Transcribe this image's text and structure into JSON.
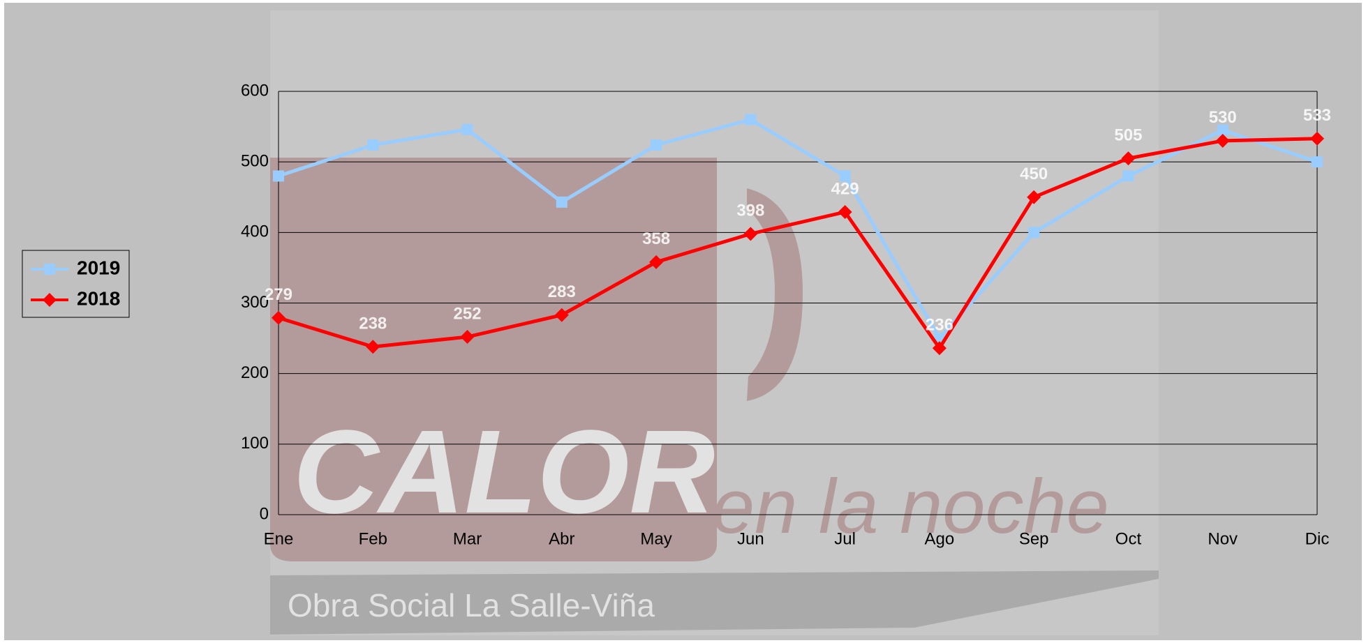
{
  "chart_data": {
    "type": "line",
    "categories": [
      "Ene",
      "Feb",
      "Mar",
      "Abr",
      "May",
      "Jun",
      "Jul",
      "Ago",
      "Sep",
      "Oct",
      "Nov",
      "Dic"
    ],
    "series": [
      {
        "name": "2019",
        "color": "#99ccff",
        "marker": "square",
        "values": [
          480,
          524,
          546,
          443,
          524,
          560,
          480,
          250,
          400,
          480,
          545,
          500
        ]
      },
      {
        "name": "2018",
        "color": "#ff0000",
        "marker": "diamond",
        "values": [
          279,
          238,
          252,
          283,
          358,
          398,
          429,
          236,
          450,
          505,
          530,
          533
        ],
        "data_labels": true
      }
    ],
    "ylim": [
      0,
      600
    ],
    "yticks": [
      0,
      100,
      200,
      300,
      400,
      500,
      600
    ],
    "grid": true,
    "legend": "left",
    "watermark": [
      "CALOR",
      "en la noche",
      "Obra Social La Salle-Viña"
    ]
  }
}
